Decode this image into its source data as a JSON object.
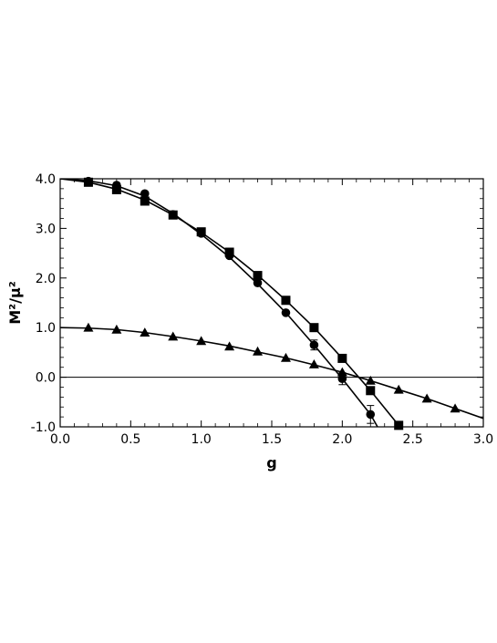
{
  "chart_data": {
    "type": "scatter",
    "title": "",
    "xlabel": "g",
    "ylabel": "M²/μ²",
    "xlim": [
      0.0,
      3.0
    ],
    "ylim": [
      -1.0,
      4.0
    ],
    "xticks": [
      0.0,
      0.5,
      1.0,
      1.5,
      2.0,
      2.5,
      3.0
    ],
    "xtick_labels": [
      "0.0",
      "0.5",
      "1.0",
      "1.5",
      "2.0",
      "2.5",
      "3.0"
    ],
    "yticks": [
      -1.0,
      0.0,
      1.0,
      2.0,
      3.0,
      4.0
    ],
    "ytick_labels": [
      "-1.0",
      "0.0",
      "1.0",
      "2.0",
      "3.0",
      "4.0"
    ],
    "grid": false,
    "reference_line_y": 0.0,
    "series": [
      {
        "marker": "circle",
        "points": [
          {
            "x": 0.2,
            "y": 3.95
          },
          {
            "x": 0.4,
            "y": 3.87
          },
          {
            "x": 0.6,
            "y": 3.7
          },
          {
            "x": 0.8,
            "y": 3.28
          },
          {
            "x": 1.0,
            "y": 2.9
          },
          {
            "x": 1.2,
            "y": 2.45
          },
          {
            "x": 1.4,
            "y": 1.9
          },
          {
            "x": 1.6,
            "y": 1.3
          },
          {
            "x": 1.8,
            "y": 0.65,
            "err": 0.1
          },
          {
            "x": 2.0,
            "y": -0.03,
            "err": 0.12
          },
          {
            "x": 2.2,
            "y": -0.75,
            "err": 0.18
          }
        ],
        "curve": [
          [
            0.0,
            4.0
          ],
          [
            0.2,
            3.96
          ],
          [
            0.4,
            3.86
          ],
          [
            0.6,
            3.65
          ],
          [
            0.8,
            3.3
          ],
          [
            1.0,
            2.88
          ],
          [
            1.2,
            2.42
          ],
          [
            1.4,
            1.88
          ],
          [
            1.6,
            1.3
          ],
          [
            1.8,
            0.65
          ],
          [
            2.0,
            -0.03
          ],
          [
            2.2,
            -0.75
          ],
          [
            2.25,
            -1.0
          ]
        ]
      },
      {
        "marker": "square",
        "points": [
          {
            "x": 0.2,
            "y": 3.93
          },
          {
            "x": 0.4,
            "y": 3.78
          },
          {
            "x": 0.6,
            "y": 3.55
          },
          {
            "x": 0.8,
            "y": 3.27
          },
          {
            "x": 1.0,
            "y": 2.93
          },
          {
            "x": 1.2,
            "y": 2.52
          },
          {
            "x": 1.4,
            "y": 2.05
          },
          {
            "x": 1.6,
            "y": 1.55
          },
          {
            "x": 1.8,
            "y": 1.0
          },
          {
            "x": 2.0,
            "y": 0.38
          },
          {
            "x": 2.2,
            "y": -0.27
          },
          {
            "x": 2.4,
            "y": -0.97
          }
        ],
        "curve": [
          [
            0.0,
            4.0
          ],
          [
            0.2,
            3.93
          ],
          [
            0.4,
            3.79
          ],
          [
            0.6,
            3.57
          ],
          [
            0.8,
            3.27
          ],
          [
            1.0,
            2.92
          ],
          [
            1.2,
            2.52
          ],
          [
            1.4,
            2.06
          ],
          [
            1.6,
            1.55
          ],
          [
            1.8,
            1.0
          ],
          [
            2.0,
            0.38
          ],
          [
            2.2,
            -0.27
          ],
          [
            2.4,
            -0.97
          ],
          [
            2.41,
            -1.0
          ]
        ]
      },
      {
        "marker": "triangle",
        "points": [
          {
            "x": 0.2,
            "y": 1.0
          },
          {
            "x": 0.4,
            "y": 0.96
          },
          {
            "x": 0.6,
            "y": 0.9
          },
          {
            "x": 0.8,
            "y": 0.82
          },
          {
            "x": 1.0,
            "y": 0.73
          },
          {
            "x": 1.2,
            "y": 0.62
          },
          {
            "x": 1.4,
            "y": 0.52
          },
          {
            "x": 1.6,
            "y": 0.39
          },
          {
            "x": 1.8,
            "y": 0.26
          },
          {
            "x": 2.0,
            "y": 0.1
          },
          {
            "x": 2.2,
            "y": -0.07
          },
          {
            "x": 2.4,
            "y": -0.25
          },
          {
            "x": 2.6,
            "y": -0.43
          },
          {
            "x": 2.8,
            "y": -0.63
          }
        ],
        "curve": [
          [
            0.0,
            1.0
          ],
          [
            0.2,
            0.99
          ],
          [
            0.4,
            0.96
          ],
          [
            0.6,
            0.9
          ],
          [
            0.8,
            0.82
          ],
          [
            1.0,
            0.73
          ],
          [
            1.2,
            0.63
          ],
          [
            1.4,
            0.51
          ],
          [
            1.6,
            0.39
          ],
          [
            1.8,
            0.25
          ],
          [
            2.0,
            0.1
          ],
          [
            2.2,
            -0.07
          ],
          [
            2.4,
            -0.25
          ],
          [
            2.6,
            -0.43
          ],
          [
            2.8,
            -0.63
          ],
          [
            3.0,
            -0.83
          ]
        ]
      }
    ]
  }
}
